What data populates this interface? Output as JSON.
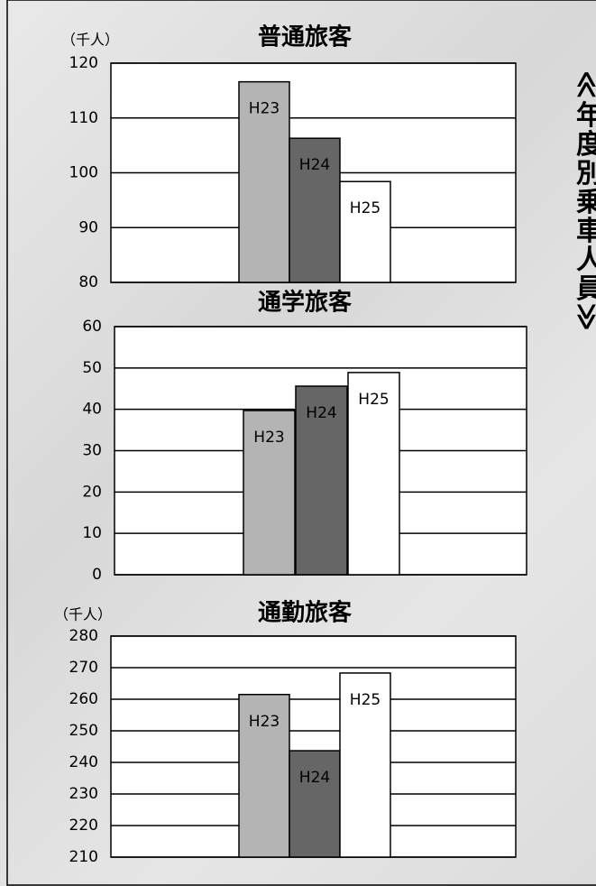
{
  "side_title": "≪年度別乗車人員≫",
  "chart_data": [
    {
      "type": "bar",
      "title": "普通旅客",
      "y_unit": "（千人）",
      "categories": [
        "H23",
        "H24",
        "H25"
      ],
      "values": [
        116.6,
        106.3,
        98.4
      ],
      "colors": [
        "#b4b4b4",
        "#666666",
        "#ffffff"
      ],
      "ylim": [
        80,
        120
      ],
      "yticks": [
        80,
        90,
        100,
        110,
        120
      ],
      "grid": true
    },
    {
      "type": "bar",
      "title": "通学旅客",
      "categories": [
        "H23",
        "H24",
        "H25"
      ],
      "values": [
        39.7,
        45.6,
        48.9
      ],
      "colors": [
        "#b4b4b4",
        "#666666",
        "#ffffff"
      ],
      "ylim": [
        0,
        60
      ],
      "yticks": [
        0,
        10,
        20,
        30,
        40,
        50,
        60
      ],
      "grid": true
    },
    {
      "type": "bar",
      "title": "通勤旅客",
      "y_unit": "（千人）",
      "categories": [
        "H23",
        "H24",
        "H25"
      ],
      "values": [
        261.5,
        243.7,
        268.3
      ],
      "colors": [
        "#b4b4b4",
        "#666666",
        "#ffffff"
      ],
      "ylim": [
        210,
        280
      ],
      "yticks": [
        210,
        220,
        230,
        240,
        250,
        260,
        270,
        280
      ],
      "grid": true
    }
  ]
}
